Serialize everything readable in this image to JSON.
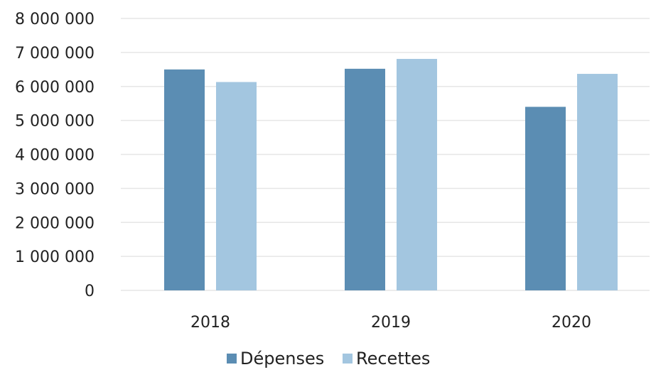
{
  "chart_data": {
    "type": "bar",
    "categories": [
      "2018",
      "2019",
      "2020"
    ],
    "series": [
      {
        "name": "Dépenses",
        "values": [
          6500000,
          6520000,
          5400000
        ]
      },
      {
        "name": "Recettes",
        "values": [
          6130000,
          6810000,
          6370000
        ]
      }
    ],
    "y_ticks": [
      "0",
      "1 000 000",
      "2 000 000",
      "3 000 000",
      "4 000 000",
      "5 000 000",
      "6 000 000",
      "7 000 000",
      "8 000 000"
    ],
    "ylim": [
      0,
      8000000
    ],
    "grid": true,
    "legend_position": "bottom",
    "title": "",
    "xlabel": "",
    "ylabel": "",
    "colors": {
      "Dépenses": "#5b8db3",
      "Recettes": "#a3c6e0"
    }
  }
}
